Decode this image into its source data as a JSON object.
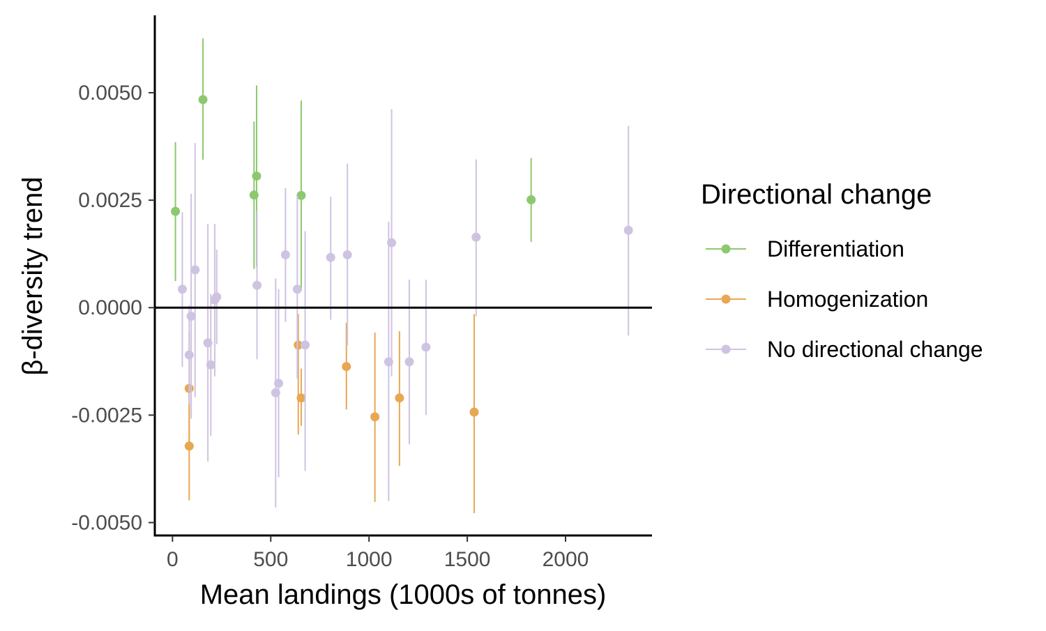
{
  "chart_data": {
    "type": "scatter",
    "xlabel": "Mean landings (1000s of tonnes)",
    "ylabel": "β-diversity trend",
    "xlim": [
      -90,
      2440
    ],
    "ylim": [
      -0.0053,
      0.0068
    ],
    "x_ticks": [
      0,
      500,
      1000,
      1500,
      2000
    ],
    "x_tick_labels": [
      "0",
      "500",
      "1000",
      "1500",
      "2000"
    ],
    "y_ticks": [
      -0.005,
      -0.0025,
      0,
      0.0025,
      0.005
    ],
    "y_tick_labels": [
      "-0.0050",
      "-0.0025",
      "0.0000",
      "0.0025",
      "0.0050"
    ],
    "reference_line_y": 0,
    "grid": false,
    "legend": {
      "title": "Directional change",
      "position": "right"
    },
    "series": [
      {
        "name": "Differentiation",
        "color": "#8cc96e",
        "points": [
          {
            "x": 15,
            "y": 0.00224,
            "ymin": 0.00062,
            "ymax": 0.00385
          },
          {
            "x": 155,
            "y": 0.00484,
            "ymin": 0.00344,
            "ymax": 0.00626
          },
          {
            "x": 415,
            "y": 0.00262,
            "ymin": 0.0009,
            "ymax": 0.00433
          },
          {
            "x": 428,
            "y": 0.00306,
            "ymin": 0.00095,
            "ymax": 0.00517
          },
          {
            "x": 655,
            "y": 0.00261,
            "ymin": 0.0004,
            "ymax": 0.00482
          },
          {
            "x": 1825,
            "y": 0.00251,
            "ymin": 0.00153,
            "ymax": 0.00348
          }
        ]
      },
      {
        "name": "Homogenization",
        "color": "#e8a753",
        "points": [
          {
            "x": 85,
            "y": -0.00188,
            "ymin": -0.0032,
            "ymax": -0.00055
          },
          {
            "x": 85,
            "y": -0.00322,
            "ymin": -0.00448,
            "ymax": -0.00195
          },
          {
            "x": 640,
            "y": -0.00087,
            "ymin": -0.00295,
            "ymax": -0.00015
          },
          {
            "x": 655,
            "y": -0.0021,
            "ymin": -0.00275,
            "ymax": -0.00142
          },
          {
            "x": 885,
            "y": -0.00137,
            "ymin": -0.00237,
            "ymax": -0.00035
          },
          {
            "x": 1030,
            "y": -0.00254,
            "ymin": -0.00452,
            "ymax": -0.00058
          },
          {
            "x": 1155,
            "y": -0.0021,
            "ymin": -0.00368,
            "ymax": -0.00055
          },
          {
            "x": 1535,
            "y": -0.00243,
            "ymin": -0.00478,
            "ymax": -0.00015
          }
        ]
      },
      {
        "name": "No directional change",
        "color": "#cfc3e2",
        "points": [
          {
            "x": 50,
            "y": 0.00043,
            "ymin": -0.00138,
            "ymax": 0.00222
          },
          {
            "x": 85,
            "y": -0.0011,
            "ymin": -0.00225,
            "ymax": 5e-05
          },
          {
            "x": 95,
            "y": -0.0002,
            "ymin": -0.00258,
            "ymax": 0.00265
          },
          {
            "x": 115,
            "y": 0.00088,
            "ymin": -0.00208,
            "ymax": 0.00383
          },
          {
            "x": 180,
            "y": -0.00082,
            "ymin": -0.00358,
            "ymax": 0.00195
          },
          {
            "x": 195,
            "y": -0.00133,
            "ymin": -0.00298,
            "ymax": 0.00032
          },
          {
            "x": 215,
            "y": 0.00018,
            "ymin": -0.0016,
            "ymax": 0.00195
          },
          {
            "x": 225,
            "y": 0.00025,
            "ymin": -0.00085,
            "ymax": 0.00135
          },
          {
            "x": 430,
            "y": 0.00052,
            "ymin": -0.0012,
            "ymax": 0.00225
          },
          {
            "x": 525,
            "y": -0.00198,
            "ymin": -0.00465,
            "ymax": 0.00068
          },
          {
            "x": 540,
            "y": -0.00176,
            "ymin": -0.00395,
            "ymax": 0.00043
          },
          {
            "x": 575,
            "y": 0.00123,
            "ymin": -0.00033,
            "ymax": 0.00278
          },
          {
            "x": 635,
            "y": 0.00043,
            "ymin": -0.00165,
            "ymax": 0.0026
          },
          {
            "x": 675,
            "y": -0.00087,
            "ymin": -0.0038,
            "ymax": 0.00178
          },
          {
            "x": 805,
            "y": 0.00117,
            "ymin": -0.00028,
            "ymax": 0.00258
          },
          {
            "x": 890,
            "y": 0.00123,
            "ymin": -0.00088,
            "ymax": 0.00335
          },
          {
            "x": 1100,
            "y": -0.00126,
            "ymin": -0.0045,
            "ymax": 0.002
          },
          {
            "x": 1115,
            "y": 0.00151,
            "ymin": -0.0016,
            "ymax": 0.00462
          },
          {
            "x": 1205,
            "y": -0.00126,
            "ymin": -0.00318,
            "ymax": 0.00065
          },
          {
            "x": 1290,
            "y": -0.00092,
            "ymin": -0.0025,
            "ymax": 0.00065
          },
          {
            "x": 1545,
            "y": 0.00164,
            "ymin": -0.0002,
            "ymax": 0.00345
          },
          {
            "x": 2320,
            "y": 0.0018,
            "ymin": -0.00065,
            "ymax": 0.00423
          }
        ]
      }
    ]
  }
}
